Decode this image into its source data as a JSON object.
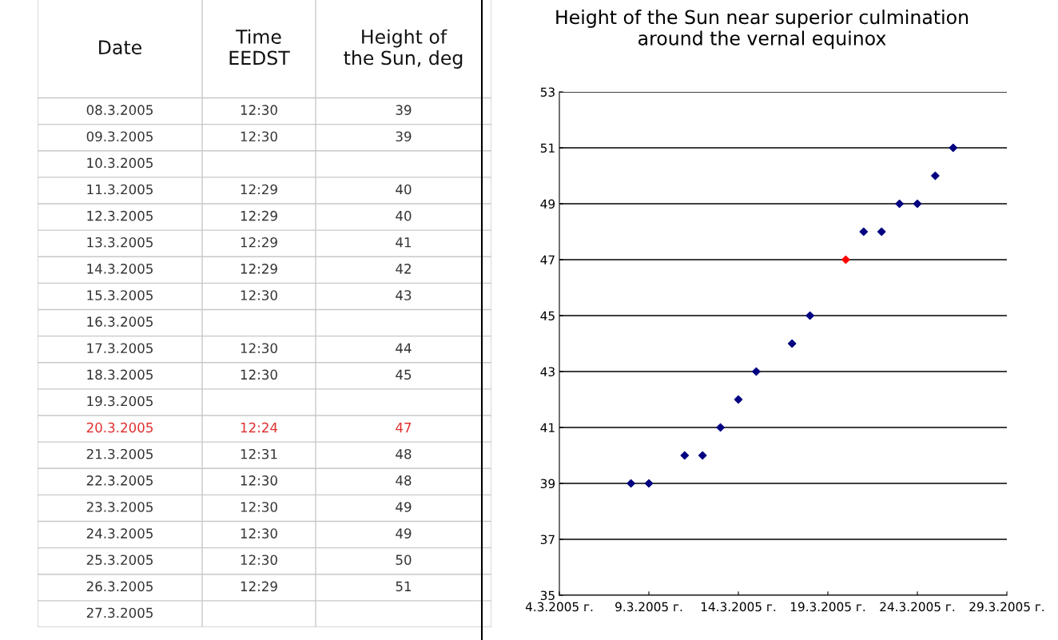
{
  "chart_data": [
    {
      "type": "other",
      "categories": [
        "Date",
        "Time\nEEDST",
        "Height of\nthe Sun, deg"
      ],
      "y_categories": [
        "08.3.2005",
        "09.3.2005",
        "10.3.2005",
        "11.3.2005",
        "12.3.2005",
        "13.3.2005",
        "14.3.2005",
        "15.3.2005",
        "16.3.2005",
        "17.3.2005",
        "18.3.2005",
        "19.3.2005",
        "20.3.2005",
        "21.3.2005",
        "22.3.2005",
        "23.3.2005",
        "24.3.2005",
        "25.3.2005",
        "26.3.2005",
        "27.3.2005"
      ],
      "cell_labels": [
        [
          "12:30",
          "39"
        ],
        [
          "12:30",
          "39"
        ],
        [
          null,
          null
        ],
        [
          "12:29",
          "40"
        ],
        [
          "12:29",
          "40"
        ],
        [
          "12:29",
          "41"
        ],
        [
          "12:29",
          "42"
        ],
        [
          "12:30",
          "43"
        ],
        [
          null,
          null
        ],
        [
          "12:30",
          "44"
        ],
        [
          "12:30",
          "45"
        ],
        [
          null,
          null
        ],
        [
          "12:24",
          "47"
        ],
        [
          "12:31",
          "48"
        ],
        [
          "12:30",
          "48"
        ],
        [
          "12:30",
          "49"
        ],
        [
          "12:30",
          "49"
        ],
        [
          "12:30",
          "50"
        ],
        [
          "12:29",
          "51"
        ],
        [
          null,
          null
        ]
      ],
      "colors": [
        "#333333",
        "#333333",
        "#333333",
        "#333333",
        "#333333",
        "#333333",
        "#333333",
        "#333333",
        "#333333",
        "#333333",
        "#333333",
        "#333333",
        "#e03030",
        "#333333",
        "#333333",
        "#333333",
        "#333333",
        "#333333",
        "#333333",
        "#333333"
      ]
    },
    {
      "type": "scatter",
      "title": "Height of the Sun near superior culmination\naround the vernal equinox",
      "x": [
        "2005-03-08",
        "2005-03-09",
        "2005-03-11",
        "2005-03-12",
        "2005-03-13",
        "2005-03-14",
        "2005-03-15",
        "2005-03-17",
        "2005-03-18",
        "2005-03-20",
        "2005-03-21",
        "2005-03-22",
        "2005-03-23",
        "2005-03-24",
        "2005-03-25",
        "2005-03-26"
      ],
      "values": [
        39,
        39,
        40,
        40,
        41,
        42,
        43,
        44,
        45,
        47,
        48,
        48,
        49,
        49,
        50,
        51
      ],
      "colors": [
        "#000080",
        "#000080",
        "#000080",
        "#000080",
        "#000080",
        "#000080",
        "#000080",
        "#000080",
        "#000080",
        "#ff0000",
        "#000080",
        "#000080",
        "#000080",
        "#000080",
        "#000080",
        "#000080"
      ],
      "marker": "diamond",
      "xlim": [
        "2005-03-04",
        "2005-03-29"
      ],
      "xticks": [
        {
          "value": "2005-03-04",
          "label": "4.3.2005 г."
        },
        {
          "value": "2005-03-09",
          "label": "9.3.2005 г."
        },
        {
          "value": "2005-03-14",
          "label": "14.3.2005 г."
        },
        {
          "value": "2005-03-19",
          "label": "19.3.2005 г."
        },
        {
          "value": "2005-03-24",
          "label": "24.3.2005 г."
        },
        {
          "value": "2005-03-29",
          "label": "29.3.2005 г."
        }
      ],
      "ylim": [
        35,
        53
      ],
      "yticks": [
        35,
        37,
        39,
        41,
        43,
        45,
        47,
        49,
        51,
        53
      ],
      "grid": "y"
    }
  ]
}
